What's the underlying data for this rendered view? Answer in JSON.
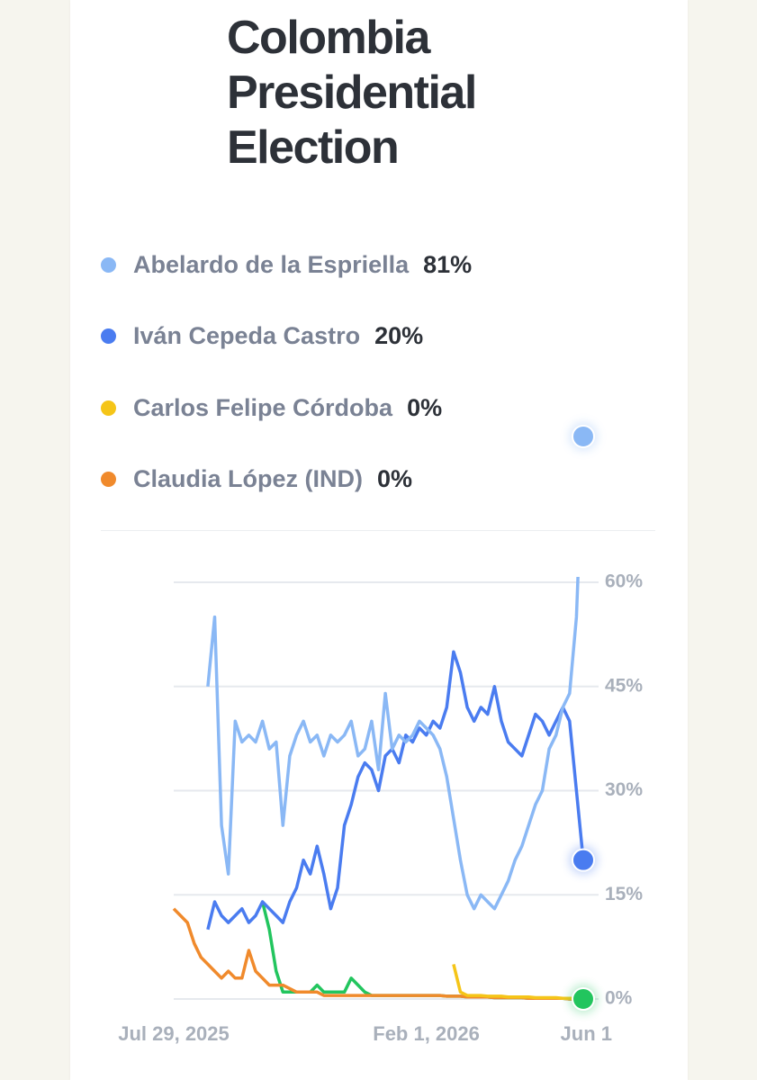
{
  "chart_data": {
    "type": "line",
    "title": "Colombia Presidential Election",
    "categories": [
      "Jul 29, 2025",
      null,
      null,
      null,
      null,
      null,
      null,
      null,
      null,
      null,
      null,
      null,
      null,
      null,
      null,
      null,
      null,
      null,
      null,
      null,
      null,
      null,
      null,
      null,
      null,
      null,
      null,
      null,
      null,
      null,
      null,
      null,
      null,
      null,
      null,
      null,
      null,
      "Feb 1, 2026",
      null,
      null,
      null,
      null,
      null,
      null,
      null,
      null,
      null,
      null,
      null,
      null,
      null,
      null,
      null,
      null,
      null,
      null,
      null,
      null,
      null,
      null,
      "Jun 1"
    ],
    "ylim": [
      0,
      60
    ],
    "yticks": [
      {
        "value": 0,
        "label": "0%"
      },
      {
        "value": 15,
        "label": "15%"
      },
      {
        "value": 30,
        "label": "30%"
      },
      {
        "value": 45,
        "label": "45%"
      },
      {
        "value": 60,
        "label": "60%"
      }
    ],
    "grid": true,
    "series": [
      {
        "name": "Abelardo de la Espriella",
        "last_label": "81%",
        "color": "#8ab8f5",
        "marker": true,
        "values": [
          null,
          null,
          null,
          null,
          null,
          45,
          55,
          25,
          18,
          40,
          37,
          38,
          37,
          40,
          36,
          37,
          25,
          35,
          38,
          40,
          37,
          38,
          35,
          38,
          37,
          38,
          40,
          35,
          36,
          40,
          33,
          44,
          36,
          38,
          37,
          38,
          40,
          39,
          38,
          36,
          32,
          26,
          20,
          15,
          13,
          15,
          14,
          13,
          15,
          17,
          20,
          22,
          25,
          28,
          30,
          36,
          38,
          42,
          44,
          55,
          81
        ]
      },
      {
        "name": "Iván Cepeda Castro",
        "last_label": "20%",
        "color": "#4a7cf0",
        "marker": true,
        "values": [
          null,
          null,
          null,
          null,
          null,
          10,
          14,
          12,
          11,
          12,
          13,
          11,
          12,
          14,
          13,
          12,
          11,
          14,
          16,
          20,
          18,
          22,
          18,
          13,
          16,
          25,
          28,
          32,
          34,
          33,
          30,
          35,
          36,
          34,
          38,
          37,
          39,
          38,
          40,
          39,
          42,
          50,
          47,
          42,
          40,
          42,
          41,
          45,
          40,
          37,
          36,
          35,
          38,
          41,
          40,
          38,
          40,
          42,
          40,
          30,
          20
        ]
      },
      {
        "name": "Carlos Felipe Córdoba",
        "last_label": "0%",
        "color": "#f5c518",
        "marker": false,
        "values": [
          null,
          null,
          null,
          null,
          null,
          null,
          null,
          null,
          null,
          null,
          null,
          null,
          null,
          null,
          null,
          null,
          null,
          null,
          null,
          null,
          null,
          null,
          null,
          null,
          null,
          null,
          null,
          null,
          null,
          null,
          null,
          null,
          null,
          null,
          null,
          null,
          null,
          null,
          null,
          null,
          null,
          5,
          1,
          0.5,
          0.5,
          0.5,
          0.4,
          0.4,
          0.4,
          0.3,
          0.3,
          0.3,
          0.3,
          0.2,
          0.2,
          0.2,
          0.2,
          0.1,
          0.1,
          0.1,
          0
        ]
      },
      {
        "name": "Claudia López (IND)",
        "last_label": "0%",
        "color": "#f08a2c",
        "marker": false,
        "values": [
          13,
          12,
          11,
          8,
          6,
          5,
          4,
          3,
          4,
          3,
          3,
          7,
          4,
          3,
          2,
          2,
          2,
          1.5,
          1,
          1,
          1,
          1,
          0.5,
          0.5,
          0.5,
          0.5,
          0.5,
          0.5,
          0.5,
          0.5,
          0.5,
          0.5,
          0.5,
          0.5,
          0.5,
          0.5,
          0.5,
          0.5,
          0.5,
          0.5,
          0.4,
          0.4,
          0.4,
          0.3,
          0.3,
          0.3,
          0.3,
          0.2,
          0.2,
          0.2,
          0.2,
          0.2,
          0.1,
          0.1,
          0.1,
          0.1,
          0.1,
          0.1,
          0,
          0,
          0
        ]
      },
      {
        "color": "#22c55e",
        "marker": true,
        "values": [
          null,
          null,
          null,
          null,
          null,
          null,
          null,
          null,
          null,
          null,
          null,
          null,
          null,
          14,
          10,
          4,
          1,
          1,
          1,
          1,
          1,
          2,
          1,
          1,
          1,
          1,
          3,
          2,
          1,
          0.5,
          0.5,
          0.5,
          0.5,
          0.5,
          0.5,
          0.5,
          0.5,
          0.5,
          0.5,
          0.5,
          0.4,
          0.4,
          0.4,
          0.3,
          0.3,
          0.3,
          0.3,
          0.2,
          0.2,
          0.2,
          0.2,
          0.2,
          0.1,
          0.1,
          0.1,
          0.1,
          0.1,
          0.1,
          0,
          0,
          0
        ]
      }
    ]
  }
}
